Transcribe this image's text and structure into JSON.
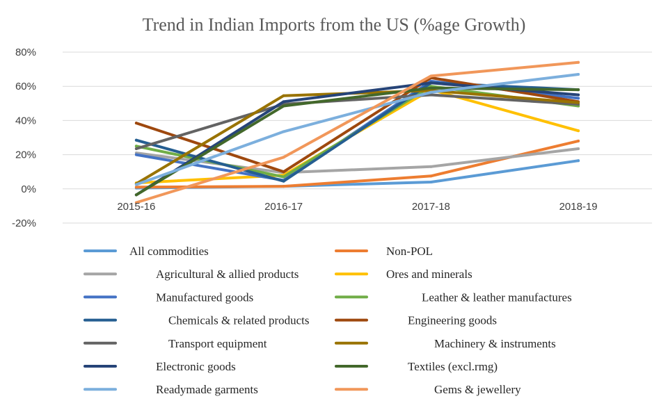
{
  "chart_data": {
    "type": "line",
    "title": "Trend in Indian Imports from the US (%age Growth)",
    "xlabel": "",
    "ylabel": "",
    "categories": [
      "2015-16",
      "2016-17",
      "2017-18",
      "2018-19"
    ],
    "y_tick_labels": [
      "80%",
      "60%",
      "40%",
      "20%",
      "0%",
      "-20%"
    ],
    "y_ticks": [
      80,
      60,
      40,
      20,
      0,
      -20
    ],
    "ylim": [
      -20,
      80
    ],
    "grid": true,
    "legend_position": "bottom",
    "series": [
      {
        "name": "All commodities",
        "color": "#5B9BD5",
        "values": [
          0.5,
          1.5,
          4,
          16.5
        ]
      },
      {
        "name": "Non-POL",
        "color": "#ED7D31",
        "values": [
          1,
          1.5,
          7.5,
          28
        ]
      },
      {
        "name": "Agricultural & allied products",
        "color": "#A5A5A5",
        "values": [
          21,
          9.5,
          13,
          23.5
        ]
      },
      {
        "name": "Ores and minerals",
        "color": "#FFC000",
        "values": [
          3.5,
          8,
          58,
          34
        ]
      },
      {
        "name": "Manufactured goods",
        "color": "#4472C4",
        "values": [
          20,
          5,
          63,
          53
        ]
      },
      {
        "name": "Leather & leather manufactures",
        "color": "#70AD47",
        "values": [
          25,
          7,
          60,
          48.5
        ]
      },
      {
        "name": "Chemicals & related products",
        "color": "#255E91",
        "values": [
          28.5,
          4.5,
          62,
          58
        ]
      },
      {
        "name": "Engineering goods",
        "color": "#9E480E",
        "values": [
          38.5,
          10,
          65,
          51
        ]
      },
      {
        "name": "Transport equipment",
        "color": "#636363",
        "values": [
          23.5,
          49.5,
          55,
          49.5
        ]
      },
      {
        "name": "Machinery & instruments",
        "color": "#997300",
        "values": [
          3,
          54.5,
          57.5,
          50.5
        ]
      },
      {
        "name": "Electronic goods",
        "color": "#264478",
        "values": [
          -3.5,
          51,
          62,
          55
        ]
      },
      {
        "name": "Textiles (excl.rmg)",
        "color": "#43682B",
        "values": [
          -3.5,
          48.5,
          59,
          58
        ]
      },
      {
        "name": "Readymade garments",
        "color": "#7CAFDD",
        "values": [
          2.5,
          33.5,
          56.5,
          67
        ]
      },
      {
        "name": "Gems & jewellery",
        "color": "#F1975A",
        "values": [
          -8,
          18.5,
          66,
          74
        ]
      }
    ]
  }
}
